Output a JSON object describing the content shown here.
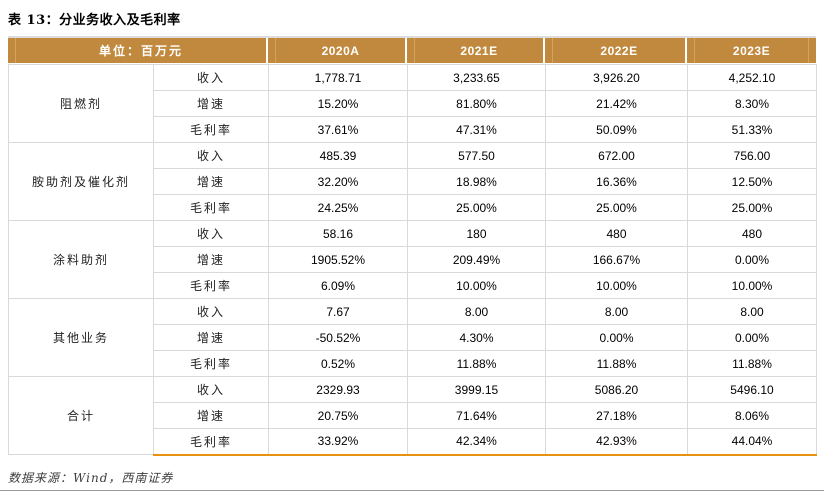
{
  "page": {
    "title": "表 13：分业务收入及毛利率",
    "source_note": "数据来源：Wind，西南证券"
  },
  "table": {
    "unit_label": "单位：百万元",
    "year_headers": [
      "2020A",
      "2021E",
      "2022E",
      "2023E"
    ],
    "metric_labels": [
      "收入",
      "增速",
      "毛利率"
    ],
    "segments": [
      {
        "name": "阻燃剂",
        "rows": [
          {
            "label": "收入",
            "values": [
              "1,778.71",
              "3,233.65",
              "3,926.20",
              "4,252.10"
            ]
          },
          {
            "label": "增速",
            "values": [
              "15.20%",
              "81.80%",
              "21.42%",
              "8.30%"
            ]
          },
          {
            "label": "毛利率",
            "values": [
              "37.61%",
              "47.31%",
              "50.09%",
              "51.33%"
            ]
          }
        ]
      },
      {
        "name": "胺助剂及催化剂",
        "rows": [
          {
            "label": "收入",
            "values": [
              "485.39",
              "577.50",
              "672.00",
              "756.00"
            ]
          },
          {
            "label": "增速",
            "values": [
              "32.20%",
              "18.98%",
              "16.36%",
              "12.50%"
            ]
          },
          {
            "label": "毛利率",
            "values": [
              "24.25%",
              "25.00%",
              "25.00%",
              "25.00%"
            ]
          }
        ]
      },
      {
        "name": "涂料助剂",
        "rows": [
          {
            "label": "收入",
            "values": [
              "58.16",
              "180",
              "480",
              "480"
            ]
          },
          {
            "label": "增速",
            "values": [
              "1905.52%",
              "209.49%",
              "166.67%",
              "0.00%"
            ]
          },
          {
            "label": "毛利率",
            "values": [
              "6.09%",
              "10.00%",
              "10.00%",
              "10.00%"
            ]
          }
        ]
      },
      {
        "name": "其他业务",
        "rows": [
          {
            "label": "收入",
            "values": [
              "7.67",
              "8.00",
              "8.00",
              "8.00"
            ]
          },
          {
            "label": "增速",
            "values": [
              "-50.52%",
              "4.30%",
              "0.00%",
              "0.00%"
            ]
          },
          {
            "label": "毛利率",
            "values": [
              "0.52%",
              "11.88%",
              "11.88%",
              "11.88%"
            ]
          }
        ]
      },
      {
        "name": "合计",
        "rows": [
          {
            "label": "收入",
            "values": [
              "2329.93",
              "3999.15",
              "5086.20",
              "5496.10"
            ]
          },
          {
            "label": "增速",
            "values": [
              "20.75%",
              "71.64%",
              "27.18%",
              "8.06%"
            ]
          },
          {
            "label": "毛利率",
            "values": [
              "33.92%",
              "42.34%",
              "42.93%",
              "44.04%"
            ]
          }
        ]
      }
    ]
  },
  "colors": {
    "header_bg": "#C0893D",
    "header_sep": "#D2A55F",
    "grid": "#D9D9D9",
    "accent_orange": "#E8910E",
    "page_line": "#9B9B9B"
  }
}
